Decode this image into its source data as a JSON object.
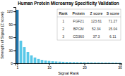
{
  "chart_data": {
    "type": "bar",
    "title": "Human Protein Microarray Specificity Validation",
    "xlabel": "Signal Rank",
    "ylabel": "Strength of Signal (Z score)",
    "x": [
      1,
      2,
      3,
      4,
      5,
      6,
      7,
      8,
      9,
      10,
      11,
      12,
      13,
      14,
      15,
      16,
      17,
      18,
      19,
      20,
      21,
      22,
      23,
      24,
      25,
      26,
      27,
      28,
      29,
      30
    ],
    "values": [
      123.61,
      52.34,
      37.3,
      26.0,
      18.5,
      13.5,
      10.0,
      8.0,
      6.5,
      5.5,
      4.8,
      4.2,
      3.8,
      3.4,
      3.1,
      2.9,
      2.7,
      2.5,
      2.4,
      2.3,
      2.2,
      2.1,
      2.0,
      1.95,
      1.9,
      1.85,
      1.8,
      1.75,
      1.7,
      1.65
    ],
    "colors": [
      "#2176ae",
      "#59c8e8",
      "#59c8e8",
      "#59c8e8",
      "#59c8e8",
      "#59c8e8",
      "#59c8e8",
      "#59c8e8",
      "#59c8e8",
      "#59c8e8",
      "#59c8e8",
      "#59c8e8",
      "#59c8e8",
      "#59c8e8",
      "#59c8e8",
      "#59c8e8",
      "#59c8e8",
      "#59c8e8",
      "#59c8e8",
      "#59c8e8",
      "#59c8e8",
      "#59c8e8",
      "#59c8e8",
      "#59c8e8",
      "#59c8e8",
      "#59c8e8",
      "#59c8e8",
      "#59c8e8",
      "#59c8e8",
      "#59c8e8"
    ],
    "xlim": [
      0.5,
      30.5
    ],
    "xticks": [
      1,
      10,
      20,
      30
    ],
    "ylim": [
      0,
      130
    ],
    "yticks": [
      0,
      30,
      60,
      90,
      120
    ],
    "grid": false,
    "table": {
      "columns": [
        "Rank",
        "Protein",
        "Z score",
        "S score"
      ],
      "rows": [
        [
          "1",
          "FGF21",
          "123.61",
          "71.27"
        ],
        [
          "2",
          "BPGM",
          "52.34",
          "15.04"
        ],
        [
          "3",
          "CD360",
          "37.3",
          "6.11"
        ]
      ]
    }
  }
}
